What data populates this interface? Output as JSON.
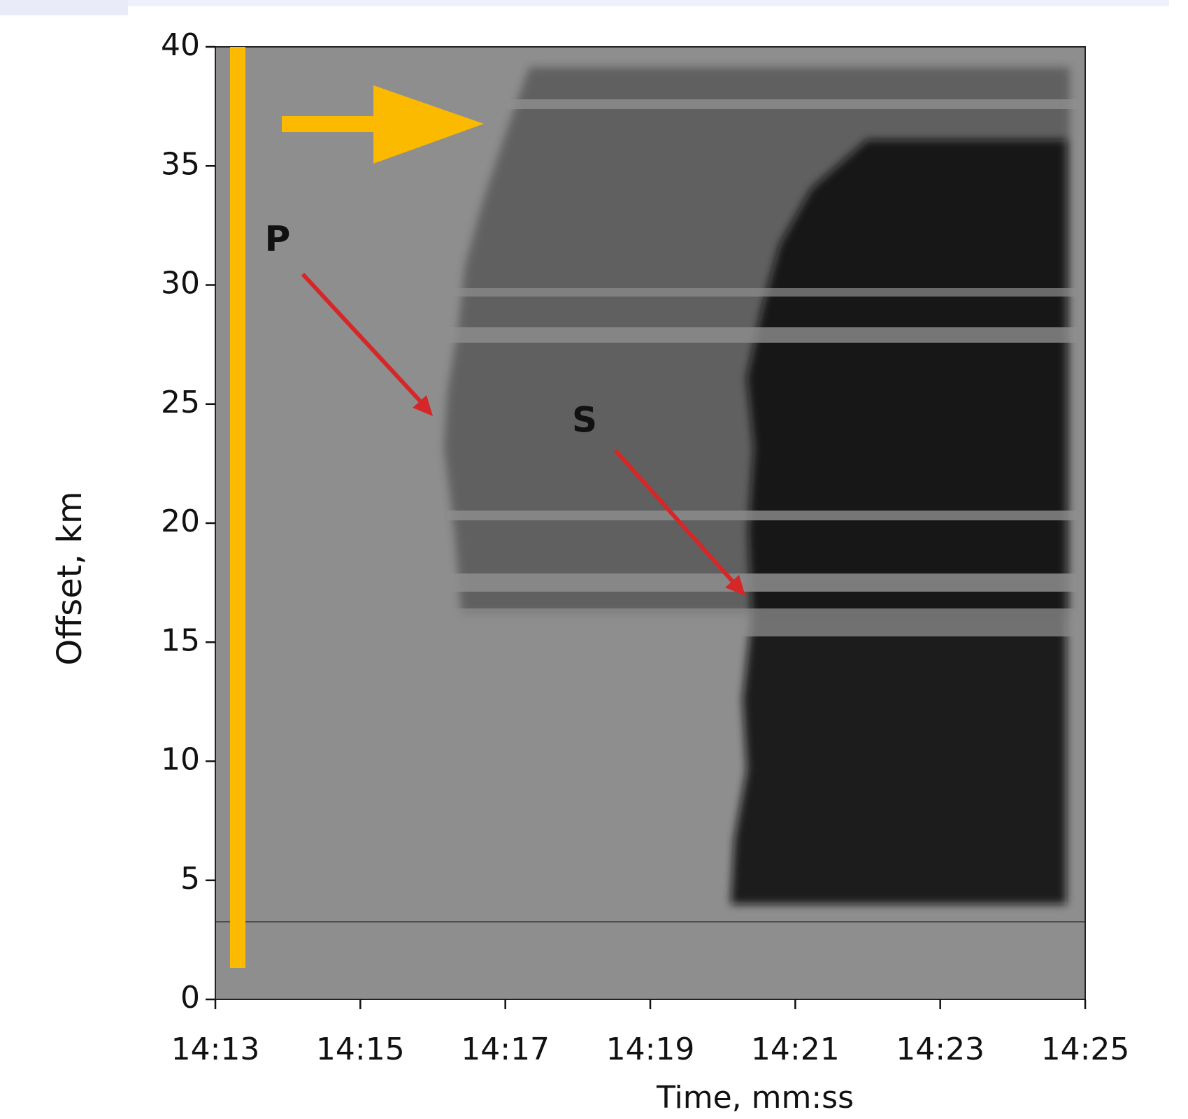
{
  "chart_data": {
    "type": "waterfall",
    "xlabel": "Time, mm:ss",
    "ylabel": "Offset, km",
    "xticks": [
      "14:13",
      "14:15",
      "14:17",
      "14:19",
      "14:21",
      "14:23",
      "14:25"
    ],
    "ylim": [
      0,
      40
    ],
    "yticks": [
      0,
      5,
      10,
      15,
      20,
      25,
      30,
      35,
      40
    ],
    "annotations": [
      "P",
      "S"
    ]
  }
}
